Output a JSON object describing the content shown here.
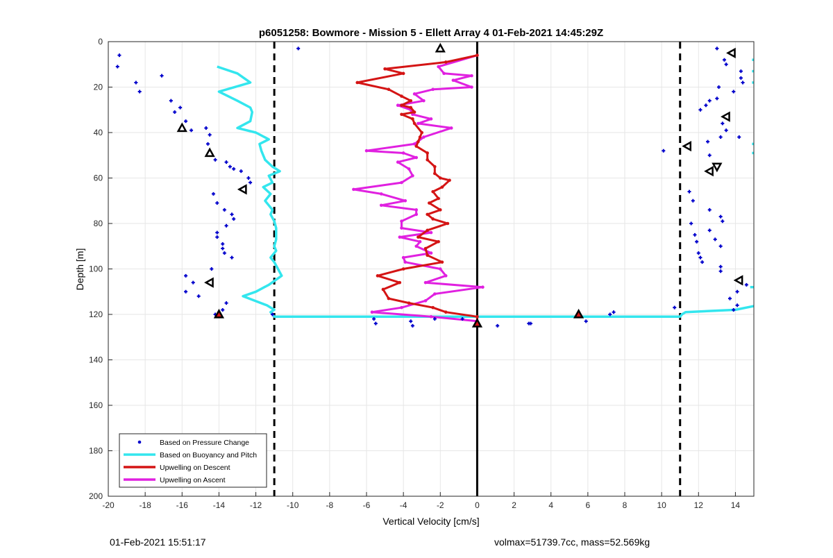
{
  "chart_data": {
    "type": "scatter",
    "title": "p6051258: Bowmore - Mission 5 - Ellett Array 4 01-Feb-2021 14:45:29Z",
    "xlabel": "Vertical Velocity [cm/s]",
    "ylabel": "Depth [m]",
    "xlim": [
      -20,
      15
    ],
    "ylim": [
      0,
      200
    ],
    "y_reversed": true,
    "grid": true,
    "x_ticks": [
      -20,
      -18,
      -16,
      -14,
      -12,
      -10,
      -8,
      -6,
      -4,
      -2,
      0,
      2,
      4,
      6,
      8,
      10,
      12,
      14
    ],
    "y_ticks": [
      0,
      20,
      40,
      60,
      80,
      100,
      120,
      140,
      160,
      180,
      200
    ],
    "legend_position": "bottom-left",
    "colors": {
      "pressure": "#0000cc",
      "buoyancy": "#33e6ee",
      "descent": "#d41414",
      "ascent": "#e020e0"
    },
    "reference_lines": [
      {
        "x": -11,
        "style": "dashed"
      },
      {
        "x": 11,
        "style": "dashed"
      },
      {
        "x": 0,
        "style": "solid"
      }
    ],
    "series": [
      {
        "name": "Based on Pressure Change",
        "kind": "points",
        "points": [
          [
            -19.4,
            6
          ],
          [
            -19.5,
            11
          ],
          [
            -18.5,
            18
          ],
          [
            -18.3,
            22
          ],
          [
            -17.1,
            15
          ],
          [
            -16.6,
            26
          ],
          [
            -16.4,
            31
          ],
          [
            -16.1,
            29
          ],
          [
            -15.8,
            35
          ],
          [
            -15.5,
            39
          ],
          [
            -14.7,
            38
          ],
          [
            -14.5,
            41
          ],
          [
            -14.6,
            45
          ],
          [
            -14.2,
            52
          ],
          [
            -13.6,
            53
          ],
          [
            -13.4,
            55
          ],
          [
            -13.2,
            56
          ],
          [
            -12.8,
            57
          ],
          [
            -12.4,
            60
          ],
          [
            -12.3,
            62
          ],
          [
            -12.6,
            64
          ],
          [
            -14.3,
            67
          ],
          [
            -14.1,
            71
          ],
          [
            -13.7,
            74
          ],
          [
            -13.3,
            76
          ],
          [
            -13.2,
            78
          ],
          [
            -13.6,
            81
          ],
          [
            -14.1,
            84
          ],
          [
            -14.1,
            86
          ],
          [
            -13.8,
            89
          ],
          [
            -13.8,
            91
          ],
          [
            -13.7,
            93
          ],
          [
            -13.3,
            95
          ],
          [
            -14.4,
            100
          ],
          [
            -15.8,
            103
          ],
          [
            -15.4,
            106
          ],
          [
            -15.8,
            110
          ],
          [
            -15.1,
            112
          ],
          [
            -13.6,
            115
          ],
          [
            -13.8,
            118
          ],
          [
            -14.2,
            120
          ],
          [
            -11.1,
            120
          ],
          [
            -9.7,
            3
          ],
          [
            -5.6,
            122
          ],
          [
            -5.5,
            124
          ],
          [
            -3.6,
            123
          ],
          [
            -3.5,
            125
          ],
          [
            -2.3,
            122
          ],
          [
            -0.8,
            122
          ],
          [
            1.1,
            125
          ],
          [
            2.8,
            124
          ],
          [
            2.9,
            124
          ],
          [
            5.9,
            123
          ],
          [
            7.2,
            120
          ],
          [
            7.4,
            119
          ],
          [
            10.1,
            48
          ],
          [
            10.7,
            117
          ],
          [
            11.5,
            66
          ],
          [
            11.7,
            70
          ],
          [
            11.6,
            80
          ],
          [
            11.8,
            85
          ],
          [
            11.9,
            88
          ],
          [
            12.0,
            93
          ],
          [
            12.1,
            95
          ],
          [
            12.2,
            97
          ],
          [
            12.1,
            30
          ],
          [
            12.4,
            28
          ],
          [
            12.6,
            26
          ],
          [
            12.5,
            44
          ],
          [
            12.6,
            50
          ],
          [
            12.6,
            74
          ],
          [
            12.6,
            83
          ],
          [
            12.9,
            87
          ],
          [
            13.0,
            3
          ],
          [
            13.0,
            25
          ],
          [
            13.1,
            20
          ],
          [
            13.4,
            8
          ],
          [
            13.2,
            42
          ],
          [
            13.3,
            36
          ],
          [
            13.5,
            39
          ],
          [
            13.2,
            77
          ],
          [
            13.3,
            79
          ],
          [
            13.2,
            90
          ],
          [
            13.2,
            99
          ],
          [
            13.2,
            101
          ],
          [
            13.5,
            10
          ],
          [
            13.7,
            113
          ],
          [
            13.9,
            22
          ],
          [
            13.9,
            118
          ],
          [
            14.1,
            110
          ],
          [
            14.1,
            116
          ],
          [
            14.2,
            42
          ],
          [
            14.3,
            13
          ],
          [
            14.3,
            16
          ],
          [
            14.4,
            18
          ],
          [
            14.3,
            104
          ],
          [
            14.6,
            107
          ]
        ]
      },
      {
        "name": "Based on Buoyancy and Pitch",
        "kind": "line",
        "points": [
          [
            -14.1,
            11
          ],
          [
            -13,
            14
          ],
          [
            -12.3,
            18
          ],
          [
            -14,
            22
          ],
          [
            -13,
            26
          ],
          [
            -12.3,
            29
          ],
          [
            -12.2,
            31
          ],
          [
            -12.3,
            35
          ],
          [
            -13,
            38
          ],
          [
            -12,
            40
          ],
          [
            -11.3,
            43
          ],
          [
            -11.8,
            45
          ],
          [
            -11.7,
            48
          ],
          [
            -11.5,
            52
          ],
          [
            -11.1,
            55
          ],
          [
            -10.7,
            57
          ],
          [
            -11.3,
            59
          ],
          [
            -11.1,
            62
          ],
          [
            -11.6,
            64
          ],
          [
            -11.2,
            67
          ],
          [
            -11.5,
            70
          ],
          [
            -11.3,
            72
          ],
          [
            -11.1,
            74
          ],
          [
            -11.2,
            76
          ],
          [
            -11.0,
            79
          ],
          [
            -10.9,
            82
          ],
          [
            -10.9,
            87
          ],
          [
            -11.0,
            90
          ],
          [
            -10.9,
            92
          ],
          [
            -11.2,
            95
          ],
          [
            -11.0,
            97
          ],
          [
            -10.6,
            103
          ],
          [
            -11.3,
            107
          ],
          [
            -12.0,
            110
          ],
          [
            -12.7,
            112
          ],
          [
            -11.4,
            116
          ],
          [
            -11.0,
            118
          ],
          [
            -11.2,
            119
          ],
          [
            -11.0,
            121
          ],
          [
            0,
            121
          ],
          [
            11,
            121
          ],
          [
            11.1,
            120
          ],
          [
            11.3,
            119
          ],
          [
            14,
            118
          ],
          [
            15.2,
            116
          ]
        ],
        "segments": [
          [
            [
              14.9,
              8
            ],
            [
              15.2,
              8
            ]
          ],
          [
            [
              14.9,
              13
            ],
            [
              15.2,
              13
            ]
          ],
          [
            [
              14.9,
              18
            ],
            [
              15.2,
              18
            ]
          ],
          [
            [
              14.9,
              45
            ],
            [
              15.2,
              45
            ]
          ],
          [
            [
              14.9,
              49
            ],
            [
              15.2,
              49
            ]
          ],
          [
            [
              14.8,
              108
            ],
            [
              15.2,
              108
            ]
          ]
        ]
      },
      {
        "name": "Upwelling on Descent",
        "kind": "line",
        "points": [
          [
            0,
            6
          ],
          [
            -1.7,
            9
          ],
          [
            -5,
            12
          ],
          [
            -4,
            14
          ],
          [
            -6.5,
            18
          ],
          [
            -4.8,
            21
          ],
          [
            -4.1,
            24
          ],
          [
            -3.6,
            26
          ],
          [
            -4.1,
            28
          ],
          [
            -3.6,
            29
          ],
          [
            -3.4,
            31
          ],
          [
            -4.1,
            32
          ],
          [
            -3.5,
            34
          ],
          [
            -3.4,
            36
          ],
          [
            -3.0,
            40
          ],
          [
            -3.1,
            42
          ],
          [
            -3.2,
            44
          ],
          [
            -3.3,
            46
          ],
          [
            -2.7,
            49
          ],
          [
            -2.7,
            52
          ],
          [
            -2.3,
            55
          ],
          [
            -2.3,
            58
          ],
          [
            -2.0,
            60
          ],
          [
            -1.5,
            61
          ],
          [
            -1.9,
            64
          ],
          [
            -2.4,
            66
          ],
          [
            -2.1,
            69
          ],
          [
            -2.6,
            71
          ],
          [
            -2.0,
            74
          ],
          [
            -2.7,
            76
          ],
          [
            -2.4,
            78
          ],
          [
            -1.6,
            80
          ],
          [
            -2.7,
            83
          ],
          [
            -3.2,
            86
          ],
          [
            -2.1,
            88
          ],
          [
            -2.8,
            91
          ],
          [
            -2.7,
            94
          ],
          [
            -1.9,
            97
          ],
          [
            -4.0,
            100
          ],
          [
            -5.4,
            103
          ],
          [
            -4.2,
            106
          ],
          [
            -5.1,
            109
          ],
          [
            -4.8,
            113
          ],
          [
            -3.7,
            115
          ],
          [
            -2.4,
            117
          ],
          [
            -1.7,
            119
          ],
          [
            0,
            121
          ],
          [
            0,
            124
          ]
        ]
      },
      {
        "name": "Upwelling on Ascent",
        "kind": "line",
        "points": [
          [
            0,
            6
          ],
          [
            -2.1,
            11
          ],
          [
            -1.8,
            14
          ],
          [
            -0.3,
            15
          ],
          [
            -1.3,
            17
          ],
          [
            -0.3,
            20
          ],
          [
            -2.4,
            21
          ],
          [
            -3.4,
            23
          ],
          [
            -2.9,
            26
          ],
          [
            -4.3,
            28
          ],
          [
            -3.6,
            30
          ],
          [
            -3.5,
            32
          ],
          [
            -2.5,
            34
          ],
          [
            -3.2,
            36
          ],
          [
            -1.4,
            38
          ],
          [
            -2.9,
            42
          ],
          [
            -3.4,
            45
          ],
          [
            -6.0,
            48
          ],
          [
            -4.0,
            49
          ],
          [
            -3.3,
            51
          ],
          [
            -4.3,
            53
          ],
          [
            -3.7,
            56
          ],
          [
            -3.5,
            59
          ],
          [
            -4.1,
            62
          ],
          [
            -6.7,
            65
          ],
          [
            -5.2,
            67
          ],
          [
            -3.9,
            70
          ],
          [
            -5.2,
            72
          ],
          [
            -3.3,
            74
          ],
          [
            -3.3,
            76
          ],
          [
            -4.1,
            79
          ],
          [
            -4.1,
            82
          ],
          [
            -2.5,
            84
          ],
          [
            -4.2,
            86
          ],
          [
            -3.1,
            88
          ],
          [
            -3.3,
            90
          ],
          [
            -2.5,
            93
          ],
          [
            -4.0,
            95
          ],
          [
            -3.9,
            97
          ],
          [
            -2.0,
            100
          ],
          [
            -1.7,
            103
          ],
          [
            -2.8,
            106
          ],
          [
            0.3,
            108
          ],
          [
            -2.3,
            111
          ],
          [
            -2.8,
            114
          ],
          [
            -4.1,
            117
          ],
          [
            -5.7,
            119
          ],
          [
            -2.5,
            121
          ],
          [
            0,
            123
          ]
        ]
      },
      {
        "name": "markers",
        "kind": "triangles",
        "points": [
          [
            -2,
            3,
            "up",
            "#000"
          ],
          [
            -16,
            38,
            "up",
            "#000"
          ],
          [
            -14.5,
            49,
            "up",
            "#000"
          ],
          [
            -12.7,
            65,
            "left",
            "#000"
          ],
          [
            -14.5,
            106,
            "left",
            "#000"
          ],
          [
            -14,
            120,
            "up",
            "#d41414"
          ],
          [
            0,
            124,
            "up",
            "#d41414"
          ],
          [
            5.5,
            120,
            "up",
            "#d41414"
          ],
          [
            13.8,
            5,
            "left",
            "#000"
          ],
          [
            13.5,
            33,
            "left",
            "#000"
          ],
          [
            11.4,
            46,
            "left",
            "#000"
          ],
          [
            12.6,
            57,
            "left",
            "#000"
          ],
          [
            13,
            55,
            "down",
            "#000"
          ],
          [
            14.2,
            105,
            "left",
            "#000"
          ]
        ]
      }
    ]
  },
  "footer": {
    "left": "01-Feb-2021 15:51:17",
    "right": "volmax=51739.7cc, mass=52.569kg"
  }
}
